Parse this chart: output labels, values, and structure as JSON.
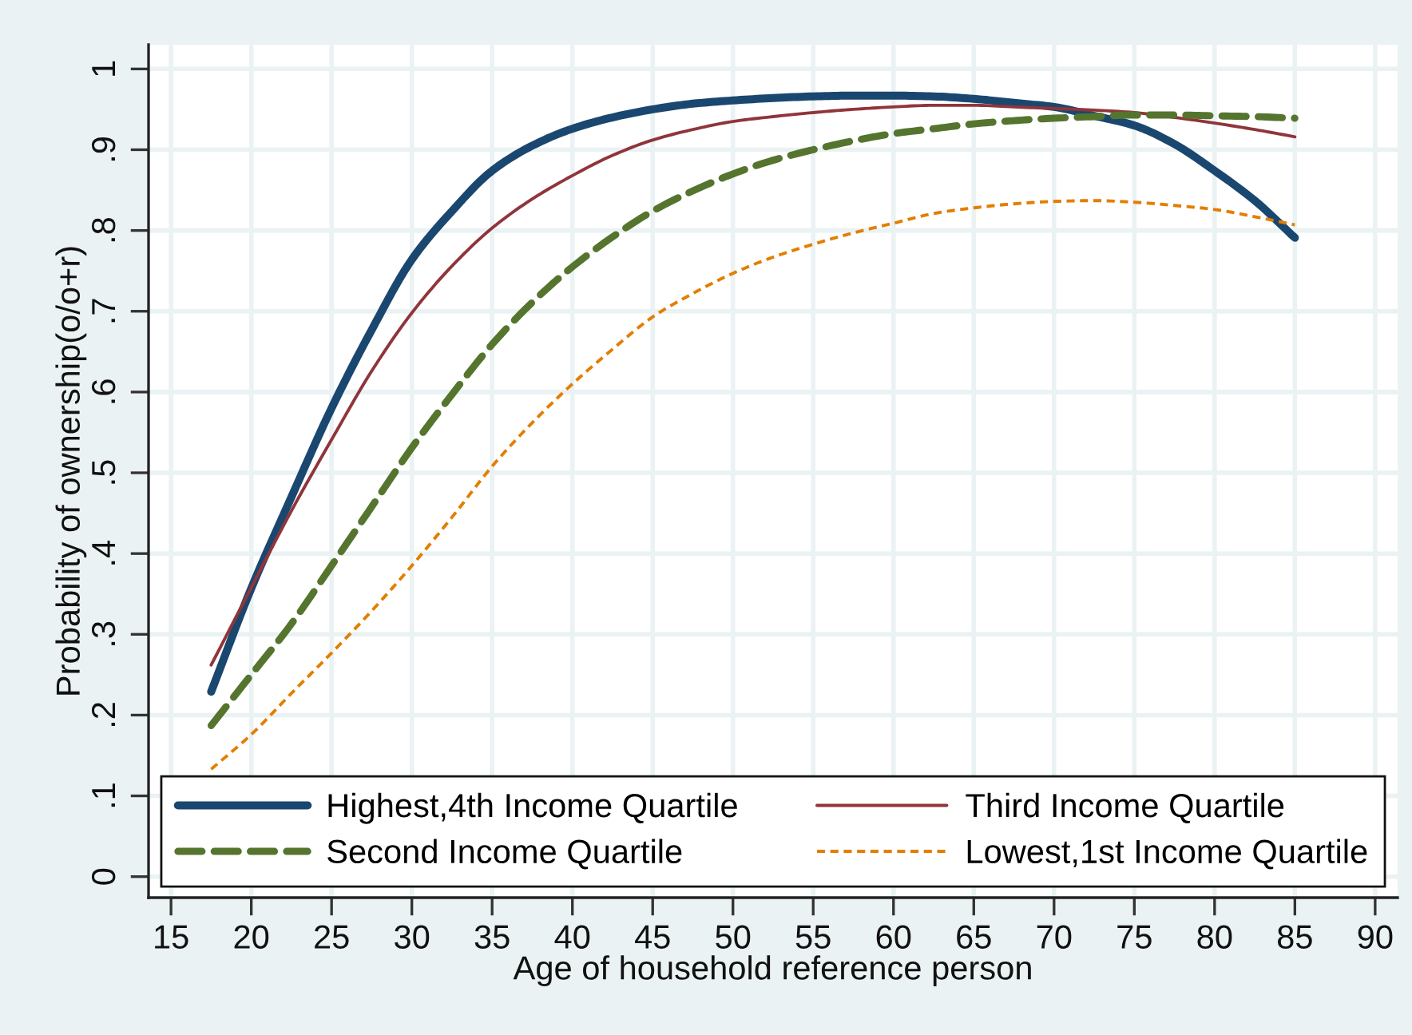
{
  "chart_data": {
    "type": "line",
    "xlabel": "Age of household reference person",
    "ylabel": "Probability of ownership(o/o+r)",
    "x": [
      17.5,
      20,
      22.5,
      25,
      27.5,
      30,
      32.5,
      35,
      37.5,
      40,
      42.5,
      45,
      47.5,
      50,
      52.5,
      55,
      57.5,
      60,
      62.5,
      65,
      67.5,
      70,
      72.5,
      75,
      77.5,
      80,
      82.5,
      85
    ],
    "series": [
      {
        "name": "Highest,4th Income Quartile",
        "color": "#1a476f",
        "line_style": "solid",
        "values": [
          0.229,
          0.357,
          0.47,
          0.58,
          0.677,
          0.764,
          0.824,
          0.874,
          0.905,
          0.926,
          0.94,
          0.95,
          0.957,
          0.961,
          0.964,
          0.966,
          0.967,
          0.967,
          0.966,
          0.963,
          0.958,
          0.953,
          0.942,
          0.93,
          0.907,
          0.874,
          0.837,
          0.791
        ]
      },
      {
        "name": "Third Income Quartile",
        "color": "#90353b",
        "line_style": "solid",
        "values": [
          0.262,
          0.358,
          0.453,
          0.541,
          0.626,
          0.698,
          0.756,
          0.803,
          0.839,
          0.868,
          0.893,
          0.912,
          0.925,
          0.935,
          0.941,
          0.946,
          0.95,
          0.953,
          0.955,
          0.955,
          0.953,
          0.951,
          0.949,
          0.946,
          0.94,
          0.933,
          0.925,
          0.916
        ]
      },
      {
        "name": "Second Income Quartile",
        "color": "#55752f",
        "line_style": "dashed",
        "values": [
          0.187,
          0.25,
          0.313,
          0.385,
          0.458,
          0.531,
          0.597,
          0.659,
          0.711,
          0.755,
          0.792,
          0.824,
          0.849,
          0.87,
          0.887,
          0.9,
          0.911,
          0.92,
          0.926,
          0.932,
          0.936,
          0.939,
          0.941,
          0.943,
          0.943,
          0.942,
          0.941,
          0.939
        ]
      },
      {
        "name": "Lowest,1st Income Quartile",
        "color": "#e37e00",
        "line_style": "dashed",
        "values": [
          0.133,
          0.176,
          0.227,
          0.277,
          0.329,
          0.385,
          0.445,
          0.508,
          0.562,
          0.61,
          0.653,
          0.693,
          0.722,
          0.747,
          0.767,
          0.783,
          0.797,
          0.809,
          0.821,
          0.828,
          0.833,
          0.836,
          0.837,
          0.835,
          0.831,
          0.826,
          0.817,
          0.807
        ]
      }
    ],
    "xlim": [
      13.6,
      91.4
    ],
    "ylim": [
      -0.026,
      1.03
    ],
    "xticks": [
      15,
      20,
      25,
      30,
      35,
      40,
      45,
      50,
      55,
      60,
      65,
      70,
      75,
      80,
      85,
      90
    ],
    "yticks": [
      0,
      {
        "value": 0.1,
        "label": ".1"
      },
      {
        "value": 0.2,
        "label": ".2"
      },
      {
        "value": 0.3,
        "label": ".3"
      },
      {
        "value": 0.4,
        "label": ".4"
      },
      {
        "value": 0.5,
        "label": ".5"
      },
      {
        "value": 0.6,
        "label": ".6"
      },
      {
        "value": 0.7,
        "label": ".7"
      },
      {
        "value": 0.8,
        "label": ".8"
      },
      {
        "value": 0.9,
        "label": ".9"
      },
      1
    ],
    "grid": true,
    "legend": "bottom"
  }
}
